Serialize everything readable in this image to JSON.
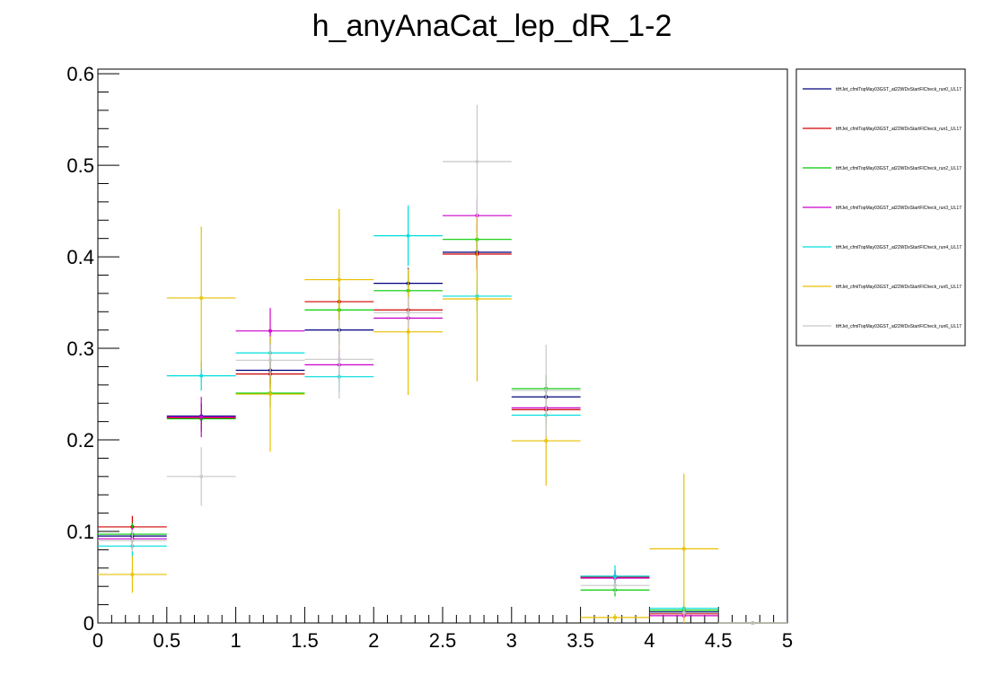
{
  "chart_data": {
    "type": "scatter",
    "title": "h_anyAnaCat_lep_dR_1-2",
    "xlabel": "",
    "ylabel": "",
    "xlim": [
      0,
      5
    ],
    "ylim": [
      0,
      0.605
    ],
    "xticks": [
      "0",
      "0.5",
      "1",
      "1.5",
      "2",
      "2.5",
      "3",
      "3.5",
      "4",
      "4.5",
      "5"
    ],
    "yticks": [
      "0",
      "0.1",
      "0.2",
      "0.3",
      "0.4",
      "0.5",
      "0.6"
    ],
    "bin_edges": [
      0,
      0.5,
      1,
      1.5,
      2,
      2.5,
      3,
      3.5,
      4,
      4.5,
      5
    ],
    "legend_position": "top-right",
    "grid": false,
    "series": [
      {
        "name": "ttHJet_cfmlTopMay03GST_at22WDxStartFICheck_run0_UL17",
        "color": "#00007f",
        "values": [
          0.095,
          0.226,
          0.276,
          0.32,
          0.371,
          0.405,
          0.247,
          0.051,
          0.012,
          0.0
        ],
        "errors": [
          0.012,
          0.014,
          0.015,
          0.016,
          0.017,
          0.018,
          0.015,
          0.007,
          0.003,
          0.0
        ]
      },
      {
        "name": "ttHJet_cfmlTopMay03GST_at22WDxStartFICheck_run1_UL17",
        "color": "#d00000",
        "values": [
          0.105,
          0.224,
          0.272,
          0.351,
          0.342,
          0.403,
          0.233,
          0.05,
          0.01,
          0.0
        ],
        "errors": [
          0.012,
          0.014,
          0.015,
          0.016,
          0.017,
          0.018,
          0.015,
          0.007,
          0.003,
          0.0
        ]
      },
      {
        "name": "ttHJet_cfmlTopMay03GST_at22WDxStartFICheck_run2_UL17",
        "color": "#00cc00",
        "values": [
          0.097,
          0.223,
          0.251,
          0.342,
          0.363,
          0.419,
          0.256,
          0.036,
          0.014,
          0.0
        ],
        "errors": [
          0.012,
          0.014,
          0.015,
          0.016,
          0.017,
          0.018,
          0.015,
          0.007,
          0.003,
          0.0
        ]
      },
      {
        "name": "ttHJet_cfmlTopMay03GST_at22WDxStartFICheck_run3_UL17",
        "color": "#cc00cc",
        "values": [
          0.092,
          0.225,
          0.319,
          0.282,
          0.333,
          0.445,
          0.235,
          0.049,
          0.008,
          0.0
        ],
        "errors": [
          0.012,
          0.022,
          0.025,
          0.016,
          0.017,
          0.018,
          0.015,
          0.007,
          0.003,
          0.0
        ]
      },
      {
        "name": "ttHJet_cfmlTopMay03GST_at22WDxStartFICheck_run4_UL17",
        "color": "#00dddd",
        "values": [
          0.084,
          0.27,
          0.295,
          0.269,
          0.423,
          0.357,
          0.227,
          0.051,
          0.016,
          0.0
        ],
        "errors": [
          0.012,
          0.016,
          0.016,
          0.016,
          0.033,
          0.018,
          0.015,
          0.012,
          0.004,
          0.0
        ]
      },
      {
        "name": "ttHJet_cfmlTopMay03GST_at22WDxStartFICheck_run5_UL17",
        "color": "#e8c000",
        "values": [
          0.053,
          0.355,
          0.25,
          0.375,
          0.318,
          0.354,
          0.199,
          0.006,
          0.081,
          0.0
        ],
        "errors": [
          0.02,
          0.078,
          0.063,
          0.077,
          0.069,
          0.09,
          0.049,
          0.004,
          0.082,
          0.0
        ]
      },
      {
        "name": "ttHJet_cfmlTopMay03GST_at22WDxStartFICheck_run6_UL17",
        "color": "#c8c8c8",
        "values": [
          0.09,
          0.16,
          0.287,
          0.288,
          0.339,
          0.504,
          0.254,
          0.041,
          0.011,
          0.0
        ],
        "errors": [
          0.012,
          0.032,
          0.018,
          0.043,
          0.017,
          0.062,
          0.05,
          0.008,
          0.004,
          0.0
        ]
      }
    ]
  }
}
